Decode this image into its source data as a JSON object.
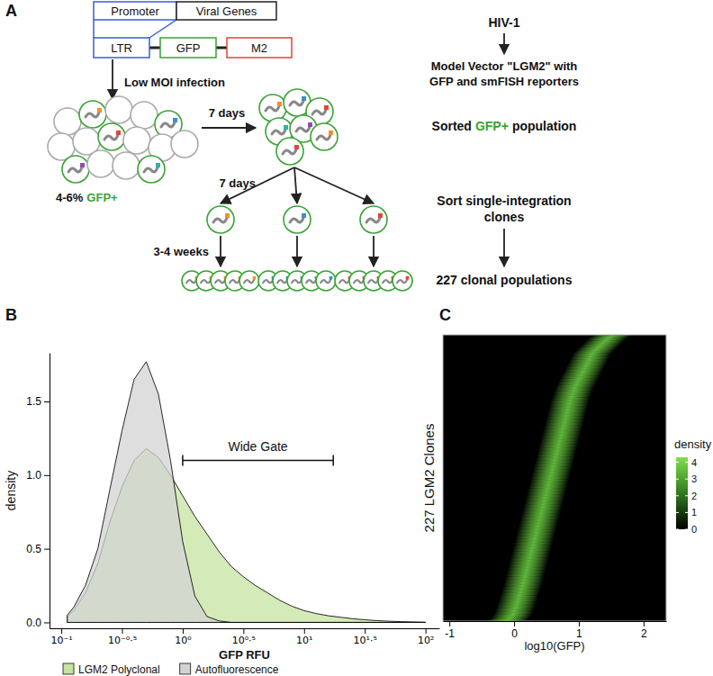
{
  "diagram": {
    "label": "A",
    "construct": {
      "promoter": "Promoter",
      "viral_genes": "Viral Genes",
      "ltr": "LTR",
      "gfp": "GFP",
      "m2": "M2"
    },
    "steps": {
      "infection": "Low MOI infection",
      "first_wait": "7 days",
      "second_wait": "7 days",
      "expansion": "3-4 weeks",
      "fraction": [
        "4-6%",
        "GFP+"
      ]
    },
    "notes": {
      "virus": "HIV-1",
      "vector": [
        "Model Vector \"LGM2\" with",
        "GFP and smFISH reporters"
      ],
      "sorted": [
        "Sorted",
        "GFP+",
        "population"
      ],
      "clones": [
        "Sort single-integration",
        "clones"
      ],
      "result": "227 clonal populations"
    }
  },
  "chart_data": [
    {
      "type": "area",
      "title": "B",
      "x": [
        0.112,
        0.126,
        0.158,
        0.2,
        0.251,
        0.316,
        0.398,
        0.501,
        0.631,
        0.794,
        1,
        1.259,
        1.585,
        1.995,
        2.512,
        3.162,
        3.981,
        5.012,
        6.31,
        7.943,
        10,
        12.59,
        15.85,
        19.95,
        25.12,
        31.62,
        39.81,
        50.12,
        63.1,
        79.43,
        100
      ],
      "series": [
        {
          "name": "LGM2 Polyclonal",
          "color": "#c6e3a1",
          "values": [
            0.04,
            0.08,
            0.2,
            0.4,
            0.68,
            0.92,
            1.1,
            1.18,
            1.12,
            1.0,
            0.86,
            0.72,
            0.6,
            0.48,
            0.38,
            0.31,
            0.25,
            0.2,
            0.15,
            0.11,
            0.08,
            0.06,
            0.045,
            0.035,
            0.025,
            0.018,
            0.012,
            0.008,
            0.005,
            0.003,
            0.001
          ]
        },
        {
          "name": "Autofluorescence",
          "color": "#d3d3d3",
          "values": [
            0.05,
            0.1,
            0.25,
            0.5,
            0.9,
            1.3,
            1.65,
            1.77,
            1.55,
            1.1,
            0.55,
            0.18,
            0.04,
            0.01,
            0,
            0,
            0,
            0,
            0,
            0,
            0,
            0,
            0,
            0,
            0,
            0,
            0,
            0,
            0,
            0,
            0
          ]
        }
      ],
      "xlabel": "GFP RFU",
      "ylabel": "density",
      "log": "x",
      "xlim": [
        0.08,
        130
      ],
      "ylim": [
        -0.04,
        1.83
      ],
      "xticks": [
        {
          "value": 0.1,
          "label": "10⁻¹"
        },
        {
          "value": 0.3162,
          "label": "10⁻⁰·⁵"
        },
        {
          "value": 1,
          "label": "10⁰"
        },
        {
          "value": 3.162,
          "label": "10⁰·⁵"
        },
        {
          "value": 10,
          "label": "10¹"
        },
        {
          "value": 31.62,
          "label": "10¹·⁵"
        },
        {
          "value": 100,
          "label": "10²"
        }
      ],
      "yticks": [
        {
          "value": 0,
          "label": "0.0"
        },
        0.5,
        {
          "value": 1,
          "label": "1.0"
        },
        1.5
      ],
      "legend": "bottom",
      "annotations": [
        {
          "text": "Wide Gate",
          "x": [
            1.0,
            17.4
          ],
          "y": 1.1
        }
      ]
    },
    {
      "type": "heatmap",
      "title": "C",
      "values": [
        -0.12,
        -0.08,
        -0.06,
        -0.05,
        -0.03,
        -0.02,
        -0.01,
        0.0,
        0.0,
        0.01,
        0.02,
        0.03,
        0.03,
        0.04,
        0.05,
        0.05,
        0.06,
        0.07,
        0.07,
        0.08,
        0.08,
        0.09,
        0.1,
        0.1,
        0.11,
        0.11,
        0.12,
        0.13,
        0.13,
        0.14,
        0.14,
        0.15,
        0.15,
        0.16,
        0.16,
        0.17,
        0.17,
        0.18,
        0.18,
        0.19,
        0.19,
        0.2,
        0.2,
        0.21,
        0.21,
        0.22,
        0.22,
        0.23,
        0.23,
        0.24,
        0.24,
        0.25,
        0.25,
        0.26,
        0.26,
        0.27,
        0.27,
        0.28,
        0.28,
        0.29,
        0.29,
        0.3,
        0.3,
        0.31,
        0.31,
        0.32,
        0.32,
        0.33,
        0.33,
        0.34,
        0.34,
        0.35,
        0.35,
        0.36,
        0.36,
        0.37,
        0.37,
        0.38,
        0.38,
        0.39,
        0.39,
        0.4,
        0.4,
        0.41,
        0.41,
        0.42,
        0.42,
        0.43,
        0.43,
        0.44,
        0.44,
        0.45,
        0.45,
        0.46,
        0.46,
        0.47,
        0.47,
        0.48,
        0.48,
        0.49,
        0.49,
        0.5,
        0.5,
        0.51,
        0.51,
        0.52,
        0.52,
        0.53,
        0.53,
        0.54,
        0.54,
        0.55,
        0.55,
        0.56,
        0.56,
        0.57,
        0.57,
        0.58,
        0.58,
        0.59,
        0.59,
        0.6,
        0.6,
        0.61,
        0.61,
        0.62,
        0.62,
        0.63,
        0.63,
        0.64,
        0.64,
        0.65,
        0.65,
        0.66,
        0.66,
        0.67,
        0.67,
        0.68,
        0.68,
        0.69,
        0.69,
        0.7,
        0.7,
        0.71,
        0.71,
        0.72,
        0.72,
        0.73,
        0.73,
        0.74,
        0.74,
        0.75,
        0.75,
        0.76,
        0.76,
        0.77,
        0.77,
        0.78,
        0.78,
        0.79,
        0.79,
        0.8,
        0.8,
        0.81,
        0.81,
        0.82,
        0.82,
        0.83,
        0.83,
        0.84,
        0.84,
        0.85,
        0.85,
        0.86,
        0.86,
        0.87,
        0.88,
        0.88,
        0.89,
        0.9,
        0.9,
        0.91,
        0.92,
        0.93,
        0.93,
        0.94,
        0.95,
        0.96,
        0.97,
        0.98,
        0.99,
        1.0,
        1.01,
        1.02,
        1.03,
        1.04,
        1.05,
        1.06,
        1.07,
        1.08,
        1.09,
        1.1,
        1.11,
        1.12,
        1.13,
        1.14,
        1.15,
        1.16,
        1.17,
        1.18,
        1.19,
        1.2,
        1.21,
        1.23,
        1.25,
        1.27,
        1.29,
        1.31,
        1.33,
        1.35,
        1.37,
        1.39,
        1.41,
        1.43,
        1.45,
        1.48,
        1.52
      ],
      "xlabel": "log10(GFP)",
      "ylabel": "227 LGM2 Clones",
      "xlim": [
        -1.1,
        2.35
      ],
      "xticks": [
        -1,
        0,
        1,
        2
      ],
      "tick_labels": "x",
      "colorbar": {
        "title": "density",
        "range": [
          0,
          4.3
        ],
        "ticks": [
          0,
          1,
          2,
          3,
          4
        ]
      }
    }
  ]
}
